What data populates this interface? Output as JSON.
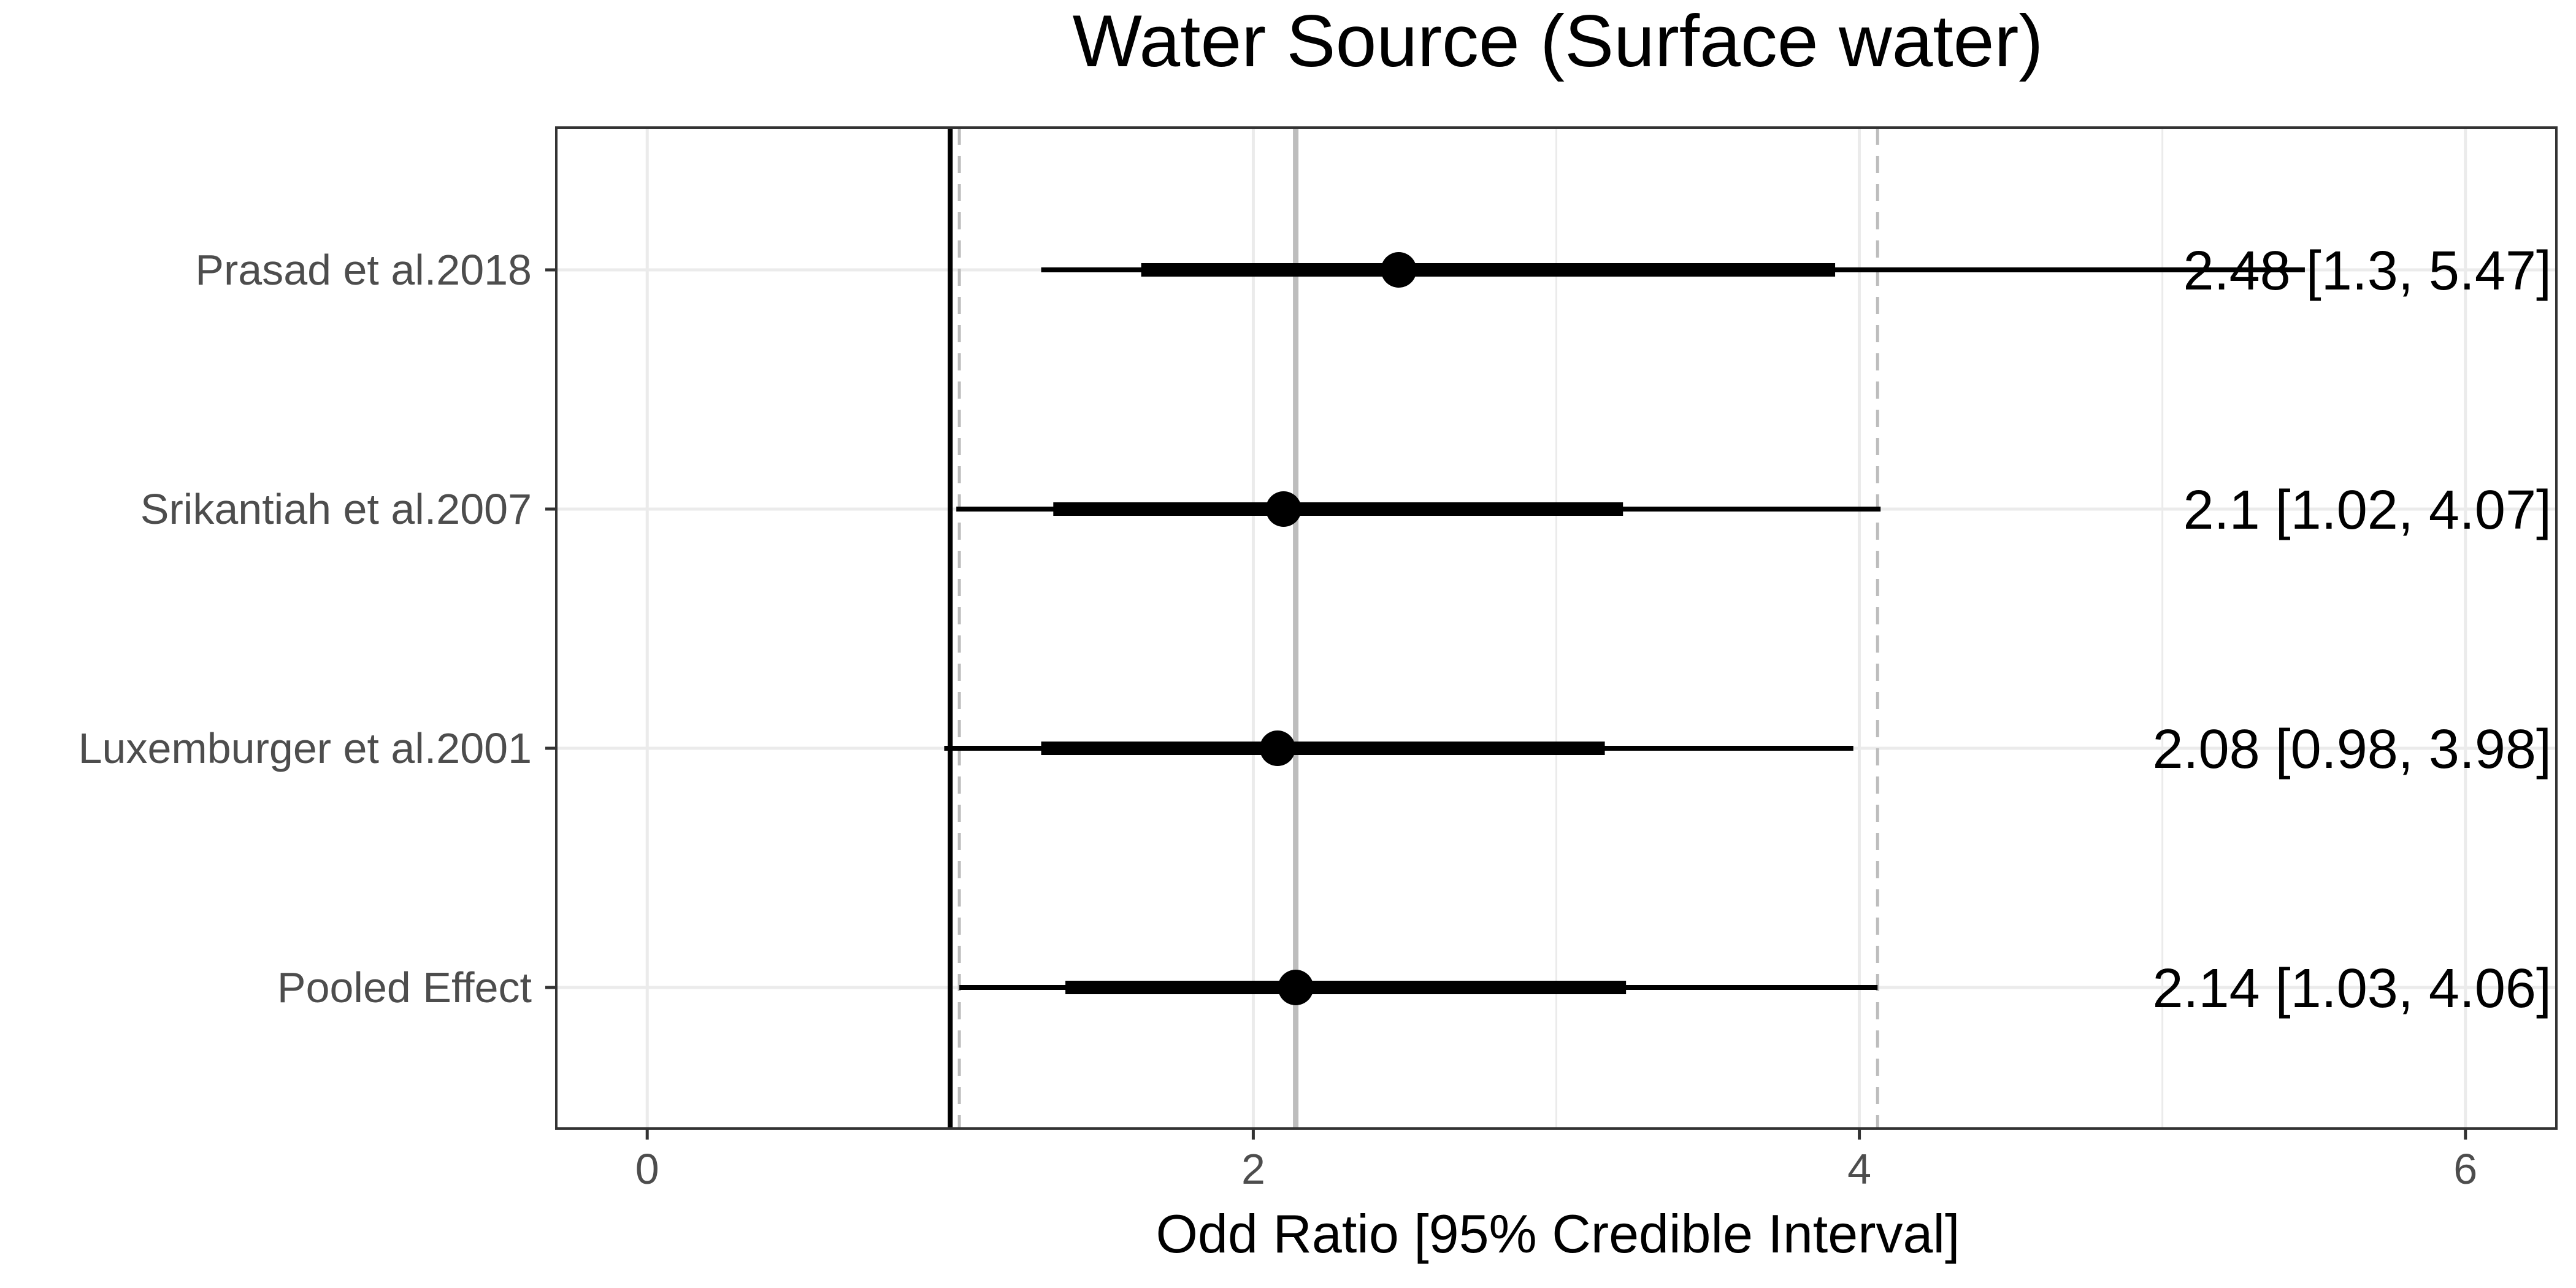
{
  "chart_data": {
    "type": "forest",
    "title": "Water Source (Surface water)",
    "xlabel": "Odd Ratio [95% Credible Interval]",
    "ylabel": "",
    "xlim": [
      -0.3,
      6.3
    ],
    "x_ticks": [
      "0",
      "2",
      "4",
      "6"
    ],
    "grid": true,
    "reference_line": 1.0,
    "pooled_band": {
      "estimate": 2.14,
      "lower": 1.03,
      "upper": 4.06
    },
    "rows": [
      {
        "label": "Prasad et al.2018",
        "estimate": 2.48,
        "lower": 1.3,
        "upper": 5.47,
        "inner_lower": 1.63,
        "inner_upper": 3.92,
        "data_label": "2.48 [1.3, 5.47]"
      },
      {
        "label": "Srikantiah et al.2007",
        "estimate": 2.1,
        "lower": 1.02,
        "upper": 4.07,
        "inner_lower": 1.34,
        "inner_upper": 3.22,
        "data_label": "2.1 [1.02, 4.07]"
      },
      {
        "label": "Luxemburger et al.2001",
        "estimate": 2.08,
        "lower": 0.98,
        "upper": 3.98,
        "inner_lower": 1.3,
        "inner_upper": 3.16,
        "data_label": "2.08 [0.98, 3.98]"
      },
      {
        "label": "Pooled Effect",
        "estimate": 2.14,
        "lower": 1.03,
        "upper": 4.06,
        "inner_lower": 1.38,
        "inner_upper": 3.23,
        "data_label": "2.14 [1.03, 4.06]"
      }
    ],
    "colors": {
      "point": "#000000",
      "grid": "#ebebeb",
      "band_line": "#bdbdbd",
      "ref_line": "#000000",
      "axis_text": "#4d4d4d"
    }
  }
}
